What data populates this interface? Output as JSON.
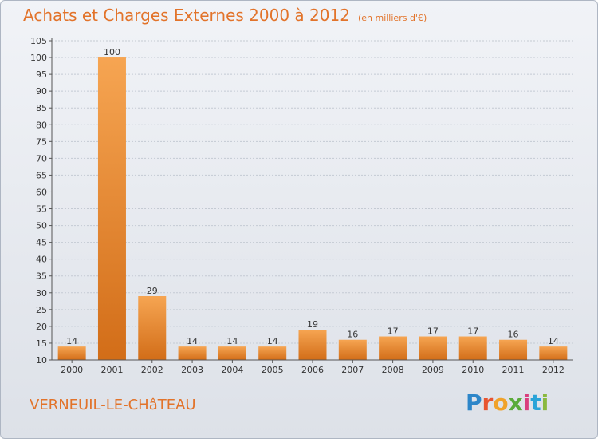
{
  "header": {
    "title": "Achats et Charges Externes 2000 à 2012",
    "unit": "(en milliers d'€)"
  },
  "footer": {
    "commune": "VERNEUIL-LE-CHâTEAU",
    "logo_letters": [
      "P",
      "r",
      "o",
      "x",
      "i",
      "t",
      "i"
    ],
    "logo_colors": [
      "#2d86c9",
      "#e8542f",
      "#f0a22a",
      "#5aab3a",
      "#d93d7c",
      "#29a3d8",
      "#8ab93f"
    ]
  },
  "colors": {
    "bar_light": "#f6a552",
    "bar_dark": "#d26d18",
    "accent": "#e2732a"
  },
  "chart_data": {
    "type": "bar",
    "categories": [
      "2000",
      "2001",
      "2002",
      "2003",
      "2004",
      "2005",
      "2006",
      "2007",
      "2008",
      "2009",
      "2010",
      "2011",
      "2012"
    ],
    "values": [
      14,
      100,
      29,
      14,
      14,
      14,
      19,
      16,
      17,
      17,
      17,
      16,
      14
    ],
    "ylim": [
      10,
      105
    ],
    "yticks": [
      10,
      15,
      20,
      25,
      30,
      35,
      40,
      45,
      50,
      55,
      60,
      65,
      70,
      75,
      80,
      85,
      90,
      95,
      100,
      105
    ],
    "grid": true,
    "title": "Achats et Charges Externes 2000 à 2012",
    "xlabel": "",
    "ylabel": ""
  }
}
